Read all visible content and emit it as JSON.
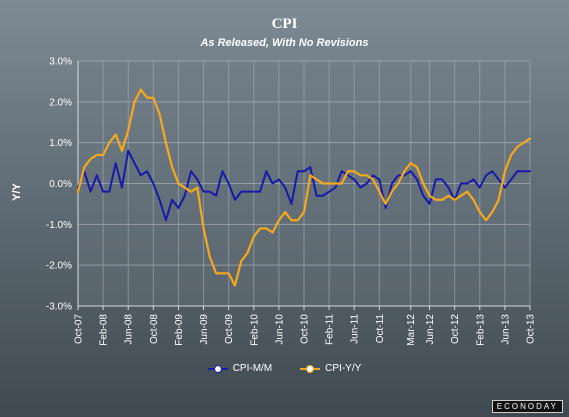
{
  "chart_data": {
    "type": "line",
    "title": "CPI",
    "subtitle": "As Released, With No Revisions",
    "ylabel": "Y/Y",
    "xlabel": "",
    "ylim": [
      -3.0,
      3.0
    ],
    "yticks": [
      "3.0%",
      "2.0%",
      "1.0%",
      "0.0%",
      "-1.0%",
      "-2.0%",
      "-3.0%"
    ],
    "ytick_values": [
      3,
      2,
      1,
      0,
      -1,
      -2,
      -3
    ],
    "xticks": [
      "Oct-07",
      "Feb-08",
      "Jun-08",
      "Oct-08",
      "Feb-09",
      "Jun-09",
      "Oct-09",
      "Feb-10",
      "Jun-10",
      "Oct-10",
      "Feb-11",
      "Jun-11",
      "Oct-11",
      "Mar-12",
      "Jun-12",
      "Oct-12",
      "Feb-13",
      "Jun-13",
      "Oct-13"
    ],
    "xtick_index": [
      0,
      4,
      8,
      12,
      16,
      20,
      24,
      28,
      32,
      36,
      40,
      44,
      48,
      53,
      56,
      60,
      64,
      68,
      72
    ],
    "x_start": "Oct-07",
    "x_end": "Oct-13",
    "grid": true,
    "legend_position": "bottom",
    "series": [
      {
        "name": "CPI-M/M",
        "color": "#1a1aa8",
        "values": [
          -0.1,
          0.3,
          -0.2,
          0.2,
          -0.2,
          -0.2,
          0.5,
          -0.1,
          0.8,
          0.5,
          0.2,
          0.3,
          0.0,
          -0.4,
          -0.9,
          -0.4,
          -0.6,
          -0.3,
          0.3,
          0.1,
          -0.2,
          -0.2,
          -0.3,
          0.3,
          0.0,
          -0.4,
          -0.2,
          -0.2,
          -0.2,
          -0.2,
          0.3,
          0.0,
          0.1,
          -0.1,
          -0.5,
          0.3,
          0.3,
          0.4,
          -0.3,
          -0.3,
          -0.2,
          -0.1,
          0.3,
          0.2,
          0.1,
          -0.1,
          0.0,
          0.2,
          0.1,
          -0.6,
          0.0,
          0.2,
          0.2,
          0.3,
          0.1,
          -0.3,
          -0.5,
          0.1,
          0.1,
          -0.1,
          -0.4,
          0.0,
          0.0,
          0.1,
          -0.1,
          0.2,
          0.3,
          0.1,
          -0.1,
          0.1,
          0.3,
          0.3,
          0.3
        ]
      },
      {
        "name": "CPI-Y/Y",
        "color": "#f4a81e",
        "values": [
          -0.2,
          0.4,
          0.6,
          0.7,
          0.7,
          1.0,
          1.2,
          0.8,
          1.3,
          2.0,
          2.3,
          2.1,
          2.1,
          1.7,
          1.0,
          0.4,
          0.0,
          -0.1,
          -0.2,
          -0.1,
          -1.1,
          -1.8,
          -2.2,
          -2.2,
          -2.2,
          -2.5,
          -1.9,
          -1.7,
          -1.3,
          -1.1,
          -1.1,
          -1.2,
          -0.9,
          -0.7,
          -0.9,
          -0.9,
          -0.7,
          0.2,
          0.1,
          0.0,
          0.0,
          0.0,
          0.0,
          0.3,
          0.3,
          0.2,
          0.2,
          0.1,
          -0.2,
          -0.5,
          -0.2,
          0.0,
          0.3,
          0.5,
          0.4,
          0.0,
          -0.3,
          -0.4,
          -0.4,
          -0.3,
          -0.4,
          -0.3,
          -0.2,
          -0.4,
          -0.7,
          -0.9,
          -0.7,
          -0.4,
          0.3,
          0.7,
          0.9,
          1.0,
          1.1
        ]
      }
    ]
  },
  "branding": {
    "logo_text": "ECONODAY"
  }
}
